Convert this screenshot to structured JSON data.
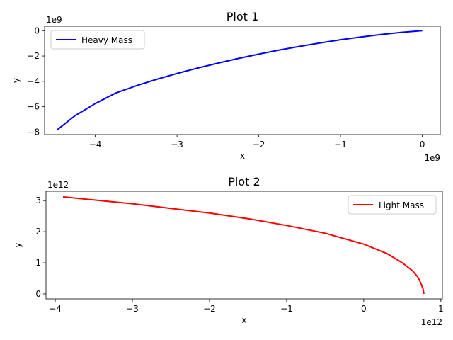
{
  "chart_data": [
    {
      "type": "line",
      "title": "Plot 1",
      "xlabel": "x",
      "ylabel": "y",
      "x_offset_label": "1e9",
      "y_offset_label": "1e9",
      "xlim": [
        -4.62,
        0.22
      ],
      "ylim": [
        -8.2,
        0.35
      ],
      "xticks": [
        -4,
        -3,
        -2,
        -1,
        0
      ],
      "yticks": [
        0,
        -2,
        -4,
        -6,
        -8
      ],
      "xtick_labels": [
        "−4",
        "−3",
        "−2",
        "−1",
        "0"
      ],
      "ytick_labels": [
        "0",
        "−2",
        "−4",
        "−6",
        "−8"
      ],
      "grid": false,
      "legend": "upper left",
      "series": [
        {
          "name": "Heavy Mass",
          "color": "#0000ff",
          "x": [
            0,
            -0.25,
            -0.5,
            -0.75,
            -1.0,
            -1.25,
            -1.5,
            -1.75,
            -2.0,
            -2.25,
            -2.5,
            -2.75,
            -3.0,
            -3.25,
            -3.5,
            -3.75,
            -4.0,
            -4.25,
            -4.47
          ],
          "y": [
            0,
            -0.13,
            -0.3,
            -0.5,
            -0.72,
            -0.97,
            -1.24,
            -1.53,
            -1.85,
            -2.19,
            -2.56,
            -2.95,
            -3.38,
            -3.84,
            -4.35,
            -4.92,
            -5.75,
            -6.72,
            -7.85
          ]
        }
      ]
    },
    {
      "type": "line",
      "title": "Plot 2",
      "xlabel": "x",
      "ylabel": "",
      "ylabel_text": "y",
      "x_offset_label": "1e12",
      "y_offset_label": "1e12",
      "xlim": [
        -4.12,
        1.02
      ],
      "ylim": [
        -0.16,
        3.3
      ],
      "xticks": [
        -4,
        -3,
        -2,
        -1,
        0,
        1
      ],
      "yticks": [
        0,
        1,
        2,
        3
      ],
      "xtick_labels": [
        "−4",
        "−3",
        "−2",
        "−1",
        "0",
        "1"
      ],
      "ytick_labels": [
        "0",
        "1",
        "2",
        "3"
      ],
      "grid": false,
      "legend": "upper right",
      "series": [
        {
          "name": "Light Mass",
          "color": "#ff0000",
          "x": [
            0.78,
            0.77,
            0.74,
            0.7,
            0.63,
            0.5,
            0.3,
            0.0,
            -0.5,
            -1.0,
            -1.5,
            -2.0,
            -2.5,
            -3.0,
            -3.5,
            -3.9
          ],
          "y": [
            0,
            0.15,
            0.35,
            0.55,
            0.75,
            1.0,
            1.3,
            1.6,
            1.95,
            2.2,
            2.42,
            2.6,
            2.75,
            2.9,
            3.02,
            3.12
          ]
        }
      ]
    }
  ]
}
